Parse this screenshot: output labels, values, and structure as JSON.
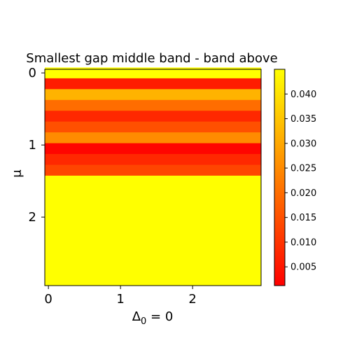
{
  "chart_data": {
    "type": "heatmap",
    "title": "Smallest gap middle band - band above",
    "xlabel_base": "Δ",
    "xlabel_sub": "0",
    "xlabel_rest": " = 0",
    "ylabel": "μ",
    "x_ticks": [
      "0",
      "1",
      "2"
    ],
    "y_ticks": [
      "0",
      "1",
      "2"
    ],
    "xlim": [
      -0.05,
      2.95
    ],
    "ylim": [
      2.95,
      -0.05
    ],
    "row_centers_mu": [
      0.0,
      0.15,
      0.3,
      0.45,
      0.6,
      0.75,
      0.9,
      1.05,
      1.2,
      1.35
    ],
    "row_values": [
      0.045,
      0.006,
      0.032,
      0.02,
      0.008,
      0.015,
      0.025,
      0.002,
      0.008,
      0.013
    ],
    "remaining_region": {
      "from_mu": 1.425,
      "to_mu": 2.95,
      "value": 0.045
    },
    "colorbar": {
      "colormap": "autumn",
      "range": [
        0.0012,
        0.045
      ],
      "ticks": [
        "0.005",
        "0.010",
        "0.015",
        "0.020",
        "0.025",
        "0.030",
        "0.035",
        "0.040"
      ],
      "tick_values": [
        0.005,
        0.01,
        0.015,
        0.02,
        0.025,
        0.03,
        0.035,
        0.04
      ]
    }
  }
}
